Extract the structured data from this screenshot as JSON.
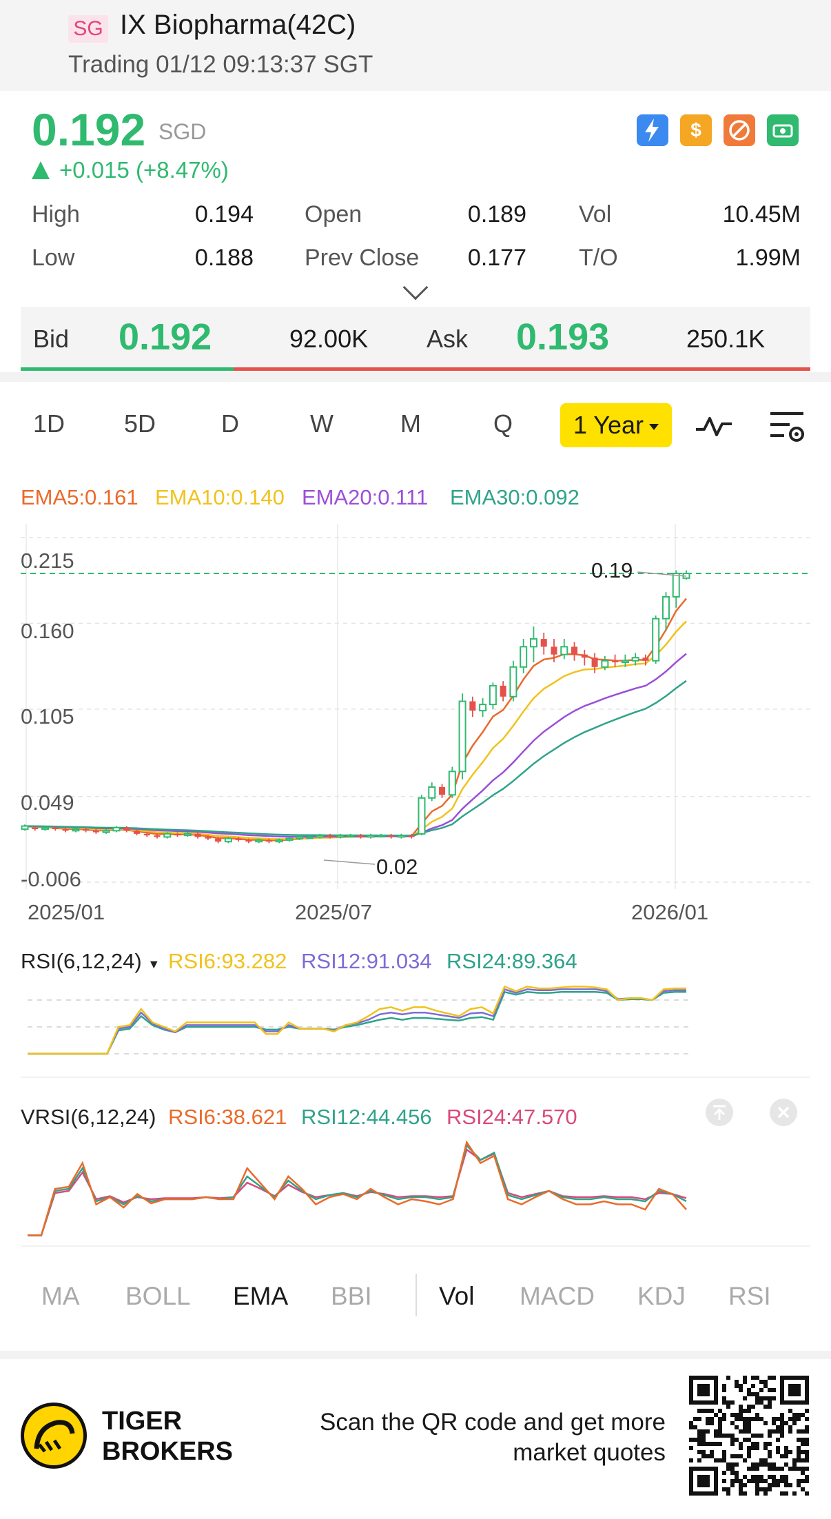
{
  "header": {
    "market_badge": "SG",
    "title": "IX Biopharma(42C)",
    "status": "Trading 01/12 09:13:37 SGT"
  },
  "quote": {
    "price": "0.192",
    "currency": "SGD",
    "change": "+0.015 (+8.47%)",
    "stats": {
      "high_label": "High",
      "high": "0.194",
      "low_label": "Low",
      "low": "0.188",
      "open_label": "Open",
      "open": "0.189",
      "prev_close_label": "Prev Close",
      "prev_close": "0.177",
      "vol_label": "Vol",
      "vol": "10.45M",
      "to_label": "T/O",
      "to": "1.99M"
    },
    "icons": [
      "lightning-icon",
      "dollar-icon",
      "no-margin-icon",
      "cash-icon"
    ],
    "colors": {
      "up": "#2fba6f",
      "down": "#e4524b",
      "accent": "#ffe100"
    }
  },
  "bidask": {
    "bid_label": "Bid",
    "bid": "0.192",
    "bid_size": "92.00K",
    "ask_label": "Ask",
    "ask": "0.193",
    "ask_size": "250.1K",
    "bid_share": 0.27
  },
  "periods": [
    "1D",
    "5D",
    "D",
    "W",
    "M",
    "Q"
  ],
  "period_selected": "1 Year",
  "chart_data": [
    {
      "type": "candlestick",
      "legend": [
        {
          "name": "EMA5",
          "value": "0.161",
          "color": "#ea6a2a"
        },
        {
          "name": "EMA10",
          "value": "0.140",
          "color": "#f1c21b"
        },
        {
          "name": "EMA20",
          "value": "0.111",
          "color": "#9b4fd8"
        },
        {
          "name": "EMA30",
          "value": "0.092",
          "color": "#2fa38a"
        }
      ],
      "y_ticks": [
        "0.215",
        "0.160",
        "0.105",
        "0.049",
        "-0.006"
      ],
      "x_ticks": [
        "2025/01",
        "2025/07",
        "2026/01"
      ],
      "ylim": [
        -0.006,
        0.215
      ],
      "current_price_line": 0.192,
      "annotation_high": "0.19",
      "annotation_low": "0.02",
      "candles": [
        [
          0.028,
          0.03,
          0.027,
          0.031
        ],
        [
          0.029,
          0.028,
          0.027,
          0.03
        ],
        [
          0.028,
          0.029,
          0.027,
          0.03
        ],
        [
          0.029,
          0.028,
          0.027,
          0.03
        ],
        [
          0.028,
          0.027,
          0.026,
          0.029
        ],
        [
          0.027,
          0.028,
          0.026,
          0.029
        ],
        [
          0.028,
          0.027,
          0.026,
          0.029
        ],
        [
          0.027,
          0.026,
          0.025,
          0.028
        ],
        [
          0.026,
          0.027,
          0.025,
          0.028
        ],
        [
          0.027,
          0.029,
          0.026,
          0.03
        ],
        [
          0.029,
          0.027,
          0.026,
          0.03
        ],
        [
          0.027,
          0.025,
          0.024,
          0.028
        ],
        [
          0.025,
          0.024,
          0.023,
          0.026
        ],
        [
          0.024,
          0.023,
          0.022,
          0.025
        ],
        [
          0.023,
          0.025,
          0.022,
          0.026
        ],
        [
          0.025,
          0.024,
          0.023,
          0.026
        ],
        [
          0.024,
          0.025,
          0.023,
          0.026
        ],
        [
          0.025,
          0.023,
          0.022,
          0.026
        ],
        [
          0.023,
          0.022,
          0.021,
          0.024
        ],
        [
          0.022,
          0.02,
          0.019,
          0.023
        ],
        [
          0.02,
          0.022,
          0.019,
          0.023
        ],
        [
          0.022,
          0.021,
          0.02,
          0.023
        ],
        [
          0.021,
          0.02,
          0.019,
          0.022
        ],
        [
          0.02,
          0.021,
          0.019,
          0.022
        ],
        [
          0.021,
          0.02,
          0.019,
          0.022
        ],
        [
          0.02,
          0.021,
          0.019,
          0.022
        ],
        [
          0.021,
          0.022,
          0.02,
          0.023
        ],
        [
          0.022,
          0.023,
          0.021,
          0.024
        ],
        [
          0.023,
          0.023,
          0.022,
          0.024
        ],
        [
          0.023,
          0.024,
          0.022,
          0.025
        ],
        [
          0.024,
          0.023,
          0.022,
          0.025
        ],
        [
          0.023,
          0.024,
          0.022,
          0.025
        ],
        [
          0.024,
          0.024,
          0.023,
          0.025
        ],
        [
          0.024,
          0.023,
          0.022,
          0.025
        ],
        [
          0.023,
          0.024,
          0.022,
          0.025
        ],
        [
          0.024,
          0.024,
          0.023,
          0.025
        ],
        [
          0.024,
          0.023,
          0.022,
          0.025
        ],
        [
          0.023,
          0.024,
          0.022,
          0.025
        ],
        [
          0.024,
          0.023,
          0.022,
          0.025
        ],
        [
          0.025,
          0.048,
          0.024,
          0.05
        ],
        [
          0.048,
          0.055,
          0.046,
          0.058
        ],
        [
          0.055,
          0.05,
          0.048,
          0.057
        ],
        [
          0.05,
          0.065,
          0.048,
          0.068
        ],
        [
          0.065,
          0.11,
          0.06,
          0.115
        ],
        [
          0.11,
          0.104,
          0.1,
          0.113
        ],
        [
          0.104,
          0.108,
          0.1,
          0.112
        ],
        [
          0.108,
          0.12,
          0.105,
          0.122
        ],
        [
          0.12,
          0.113,
          0.11,
          0.123
        ],
        [
          0.113,
          0.132,
          0.11,
          0.136
        ],
        [
          0.132,
          0.145,
          0.128,
          0.15
        ],
        [
          0.145,
          0.15,
          0.135,
          0.158
        ],
        [
          0.15,
          0.145,
          0.14,
          0.154
        ],
        [
          0.145,
          0.14,
          0.135,
          0.15
        ],
        [
          0.14,
          0.145,
          0.137,
          0.15
        ],
        [
          0.145,
          0.14,
          0.136,
          0.148
        ],
        [
          0.14,
          0.138,
          0.133,
          0.143
        ],
        [
          0.138,
          0.132,
          0.128,
          0.141
        ],
        [
          0.132,
          0.136,
          0.13,
          0.139
        ],
        [
          0.136,
          0.135,
          0.132,
          0.14
        ],
        [
          0.135,
          0.136,
          0.132,
          0.14
        ],
        [
          0.136,
          0.138,
          0.133,
          0.141
        ],
        [
          0.138,
          0.136,
          0.133,
          0.14
        ],
        [
          0.136,
          0.163,
          0.134,
          0.165
        ],
        [
          0.163,
          0.177,
          0.155,
          0.18
        ],
        [
          0.177,
          0.192,
          0.17,
          0.194
        ],
        [
          0.189,
          0.192,
          0.188,
          0.194
        ]
      ]
    },
    {
      "type": "line",
      "name": "RSI(6,12,24)",
      "legend": [
        {
          "name": "RSI6",
          "value": "93.282",
          "color": "#f1c21b"
        },
        {
          "name": "RSI12",
          "value": "91.034",
          "color": "#7d6bd8"
        },
        {
          "name": "RSI24",
          "value": "89.364",
          "color": "#2fa38a"
        }
      ],
      "ylim": [
        0,
        100
      ],
      "series": [
        {
          "name": "RSI6",
          "values": [
            20,
            20,
            20,
            20,
            20,
            20,
            20,
            20,
            50,
            52,
            70,
            55,
            50,
            45,
            55,
            55,
            55,
            55,
            55,
            55,
            55,
            42,
            42,
            55,
            48,
            48,
            48,
            45,
            52,
            55,
            62,
            70,
            72,
            68,
            72,
            72,
            68,
            65,
            62,
            70,
            72,
            65,
            95,
            90,
            95,
            93,
            93,
            94,
            95,
            95,
            94,
            92,
            80,
            82,
            82,
            80,
            92,
            93,
            93
          ]
        },
        {
          "name": "RSI12",
          "values": [
            20,
            20,
            20,
            20,
            20,
            20,
            20,
            20,
            48,
            50,
            66,
            54,
            48,
            44,
            52,
            52,
            52,
            52,
            52,
            52,
            52,
            45,
            45,
            52,
            48,
            48,
            48,
            46,
            52,
            54,
            58,
            64,
            66,
            64,
            66,
            66,
            64,
            62,
            60,
            65,
            66,
            62,
            92,
            88,
            92,
            91,
            91,
            92,
            92,
            92,
            92,
            90,
            81,
            82,
            82,
            80,
            90,
            91,
            91
          ]
        },
        {
          "name": "RSI24",
          "values": [
            20,
            20,
            20,
            20,
            20,
            20,
            20,
            20,
            46,
            48,
            62,
            52,
            47,
            44,
            50,
            50,
            50,
            50,
            50,
            50,
            50,
            47,
            47,
            50,
            48,
            48,
            48,
            47,
            50,
            52,
            55,
            58,
            60,
            58,
            60,
            60,
            59,
            58,
            57,
            60,
            61,
            58,
            89,
            86,
            89,
            88,
            88,
            89,
            89,
            89,
            89,
            88,
            80,
            81,
            81,
            80,
            88,
            89,
            89
          ]
        }
      ]
    },
    {
      "type": "line",
      "name": "VRSI(6,12,24)",
      "legend": [
        {
          "name": "RSI6",
          "value": "38.621",
          "color": "#ea6a2a"
        },
        {
          "name": "RSI12",
          "value": "44.456",
          "color": "#2fa38a"
        },
        {
          "name": "RSI24",
          "value": "47.570",
          "color": "#d84a7a"
        }
      ],
      "ylim": [
        0,
        100
      ],
      "series": [
        {
          "name": "RSI6",
          "values": [
            5,
            5,
            50,
            52,
            75,
            35,
            42,
            32,
            45,
            36,
            40,
            40,
            40,
            42,
            40,
            40,
            70,
            55,
            40,
            62,
            50,
            35,
            42,
            45,
            40,
            50,
            42,
            35,
            40,
            38,
            35,
            40,
            95,
            75,
            82,
            40,
            35,
            42,
            48,
            40,
            35,
            35,
            38,
            35,
            35,
            30,
            50,
            45,
            30
          ]
        },
        {
          "name": "RSI12",
          "values": [
            5,
            5,
            48,
            50,
            70,
            38,
            42,
            35,
            43,
            38,
            40,
            40,
            40,
            42,
            40,
            42,
            62,
            52,
            42,
            58,
            48,
            40,
            44,
            46,
            42,
            48,
            44,
            40,
            42,
            42,
            40,
            42,
            92,
            78,
            85,
            44,
            40,
            44,
            48,
            42,
            40,
            40,
            42,
            40,
            40,
            38,
            48,
            45,
            38
          ]
        },
        {
          "name": "RSI24",
          "values": [
            5,
            5,
            46,
            48,
            66,
            40,
            43,
            37,
            42,
            40,
            41,
            41,
            41,
            42,
            41,
            42,
            56,
            50,
            43,
            54,
            47,
            42,
            44,
            46,
            43,
            47,
            45,
            42,
            43,
            43,
            42,
            43,
            88,
            78,
            84,
            46,
            42,
            45,
            48,
            43,
            42,
            42,
            43,
            42,
            42,
            40,
            46,
            45,
            41
          ]
        }
      ]
    }
  ],
  "indicator_tabs": {
    "main": [
      "MA",
      "BOLL",
      "EMA",
      "BBI"
    ],
    "sub": [
      "Vol",
      "MACD",
      "KDJ",
      "RSI"
    ],
    "active_main": "EMA",
    "active_sub": "Vol"
  },
  "footer": {
    "brand_line1": "TIGER",
    "brand_line2": "BROKERS",
    "scan_text": "Scan the QR code and get more market quotes"
  }
}
